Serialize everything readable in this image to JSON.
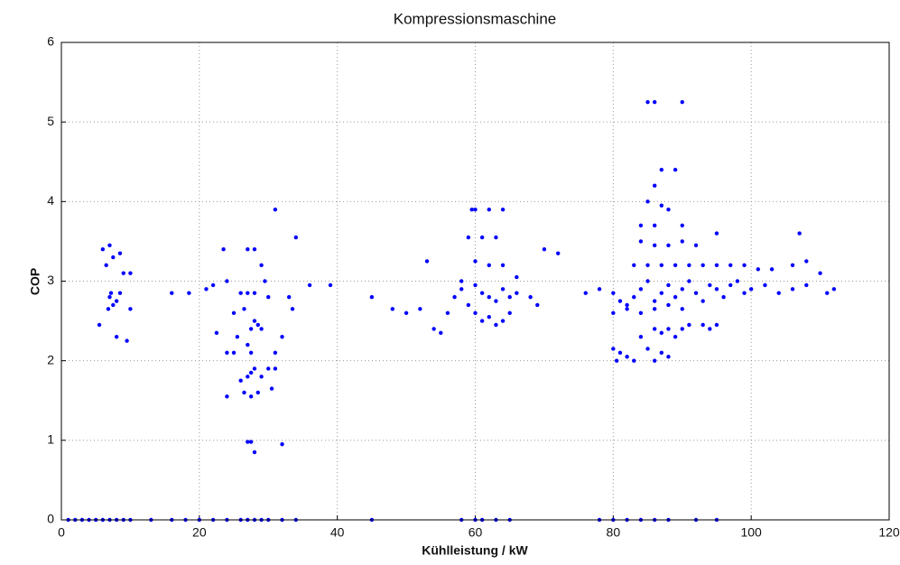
{
  "chart_data": {
    "type": "scatter",
    "title": "Kompressionsmaschine",
    "x_label": "Kühlleistung / kW",
    "y_label": "COP",
    "color": "#0000ff",
    "grid": true,
    "xlim": [
      0,
      120
    ],
    "xticks": [
      0,
      20,
      40,
      60,
      80,
      100,
      120
    ],
    "ylim": [
      0,
      6
    ],
    "yticks": [
      0,
      1,
      2,
      3,
      4,
      5,
      6
    ],
    "x": [
      6,
      7,
      6.5,
      7.5,
      8.5,
      7,
      7.5,
      8,
      6.8,
      5.5,
      9,
      10,
      8,
      9.5,
      10,
      7.2,
      8.5,
      23.5,
      27,
      28,
      29,
      29.5,
      31,
      22,
      24,
      26,
      27,
      28,
      30,
      25,
      26.5,
      28,
      29,
      27.5,
      28.5,
      22.5,
      24,
      25.5,
      27,
      27.5,
      31,
      32,
      25,
      26,
      27,
      27.5,
      28,
      29,
      26.5,
      24,
      27.5,
      28.5,
      30,
      31,
      30.5,
      27,
      27.5,
      28,
      32,
      33,
      34,
      33.5,
      36,
      39,
      16,
      18.5,
      21,
      45,
      48,
      50,
      52,
      53,
      54,
      55,
      56,
      57,
      58,
      59,
      59.5,
      60,
      61,
      62,
      63,
      64,
      60,
      62,
      64,
      58,
      60,
      61,
      62,
      63,
      64,
      65,
      66,
      59,
      60,
      61,
      62,
      63,
      64,
      65,
      66,
      68,
      70,
      72,
      69,
      80,
      80.5,
      81,
      82,
      83,
      84,
      85,
      86,
      87,
      88,
      86,
      87,
      88,
      89,
      90,
      91,
      93,
      94,
      95,
      85,
      86,
      90,
      87,
      89,
      86,
      85,
      87,
      88,
      84,
      86,
      90,
      84,
      86,
      88,
      90,
      92,
      95,
      107,
      83,
      85,
      87,
      89,
      91,
      93,
      95,
      97,
      99,
      101,
      103,
      106,
      108,
      110,
      78,
      80,
      81,
      82,
      83,
      84,
      85,
      86,
      87,
      88,
      89,
      90,
      91,
      92,
      93,
      94,
      95,
      96,
      97,
      98,
      99,
      100,
      102,
      104,
      106,
      108,
      111,
      112,
      80,
      82,
      84,
      86,
      88,
      90,
      76,
      1,
      2,
      3,
      4,
      5,
      6,
      7,
      8,
      9,
      10,
      13,
      16,
      18,
      20,
      22,
      24,
      26,
      27,
      28,
      29,
      30,
      32,
      34,
      45,
      58,
      60,
      61,
      63,
      65,
      78,
      80,
      82,
      84,
      86,
      88,
      92,
      95
    ],
    "values": [
      3.4,
      3.45,
      3.2,
      3.3,
      3.35,
      2.8,
      2.7,
      2.75,
      2.65,
      2.45,
      3.1,
      3.1,
      2.3,
      2.25,
      2.65,
      2.85,
      2.85,
      3.4,
      3.4,
      3.4,
      3.2,
      3.0,
      3.9,
      2.95,
      3.0,
      2.85,
      2.85,
      2.85,
      2.8,
      2.6,
      2.65,
      2.5,
      2.4,
      2.4,
      2.45,
      2.35,
      2.1,
      2.3,
      2.2,
      2.1,
      2.1,
      2.3,
      2.1,
      1.75,
      1.8,
      1.85,
      1.9,
      1.8,
      1.6,
      1.55,
      1.55,
      1.6,
      1.9,
      1.9,
      1.65,
      0.98,
      0.98,
      0.85,
      0.95,
      2.8,
      3.55,
      2.65,
      2.95,
      2.95,
      2.85,
      2.85,
      2.9,
      2.8,
      2.65,
      2.6,
      2.65,
      3.25,
      2.4,
      2.35,
      2.6,
      2.8,
      2.9,
      3.55,
      3.9,
      3.9,
      3.55,
      3.9,
      3.55,
      3.9,
      3.25,
      3.2,
      3.2,
      3.0,
      2.95,
      2.85,
      2.8,
      2.75,
      2.9,
      2.8,
      2.85,
      2.7,
      2.6,
      2.5,
      2.55,
      2.45,
      2.5,
      2.6,
      3.05,
      2.8,
      3.4,
      3.35,
      2.7,
      2.15,
      2.0,
      2.1,
      2.05,
      2.0,
      2.3,
      2.15,
      2.0,
      2.1,
      2.05,
      2.4,
      2.35,
      2.4,
      2.3,
      2.4,
      2.45,
      2.45,
      2.4,
      2.45,
      5.25,
      5.25,
      5.25,
      4.4,
      4.4,
      4.2,
      4.0,
      3.95,
      3.9,
      3.7,
      3.7,
      3.7,
      3.5,
      3.45,
      3.45,
      3.5,
      3.45,
      3.6,
      3.6,
      3.2,
      3.2,
      3.2,
      3.2,
      3.2,
      3.2,
      3.2,
      3.2,
      3.2,
      3.15,
      3.15,
      3.2,
      3.25,
      3.1,
      2.9,
      2.85,
      2.75,
      2.7,
      2.8,
      2.9,
      3.0,
      2.75,
      2.85,
      2.95,
      2.8,
      2.9,
      3.0,
      2.85,
      2.75,
      2.95,
      2.9,
      2.8,
      2.95,
      3.0,
      2.85,
      2.9,
      2.95,
      2.85,
      2.9,
      2.95,
      2.85,
      2.9,
      2.6,
      2.65,
      2.6,
      2.65,
      2.7,
      2.65,
      2.85,
      0,
      0,
      0,
      0,
      0,
      0,
      0,
      0,
      0,
      0,
      0,
      0,
      0,
      0,
      0,
      0,
      0,
      0,
      0,
      0,
      0,
      0,
      0,
      0,
      0,
      0,
      0,
      0,
      0,
      0,
      0,
      0,
      0,
      0,
      0,
      0,
      0
    ]
  }
}
